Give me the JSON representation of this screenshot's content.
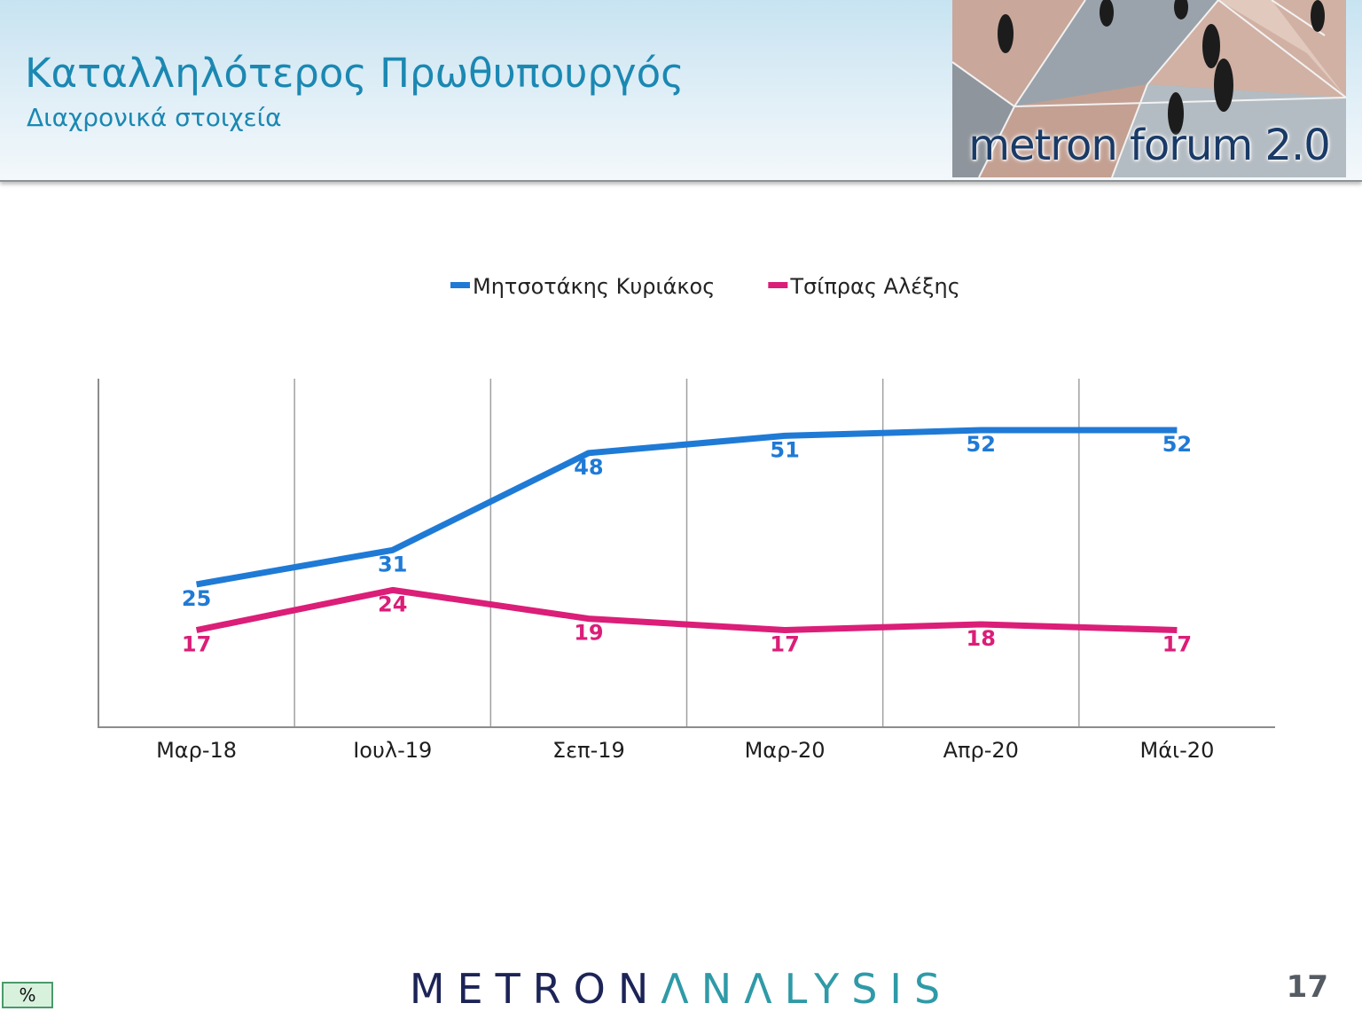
{
  "header": {
    "title": "Καταλληλότερος Πρωθυπουργός",
    "subtitle": "Διαχρονικά στοιχεία",
    "logo_text": "metron forum 2.0"
  },
  "chart_data": {
    "type": "line",
    "categories": [
      "Μαρ-18",
      "Ιουλ-19",
      "Σεπ-19",
      "Μαρ-20",
      "Απρ-20",
      "Μάι-20"
    ],
    "series": [
      {
        "name": "Μητσοτάκης Κυριάκος",
        "color": "#1f7ad6",
        "values": [
          25,
          31,
          48,
          51,
          52,
          52
        ]
      },
      {
        "name": "Τσίπρας Αλέξης",
        "color": "#db1e78",
        "values": [
          17,
          24,
          19,
          17,
          18,
          17
        ]
      }
    ],
    "legend_position": "top-center",
    "grid": "vertical",
    "data_labels": true,
    "ylim": [
      0,
      61
    ]
  },
  "footer": {
    "unit_badge": "%",
    "brand_part1": "METRON",
    "brand_part2": "ΛNΛLYSIS",
    "page_number": "17"
  }
}
